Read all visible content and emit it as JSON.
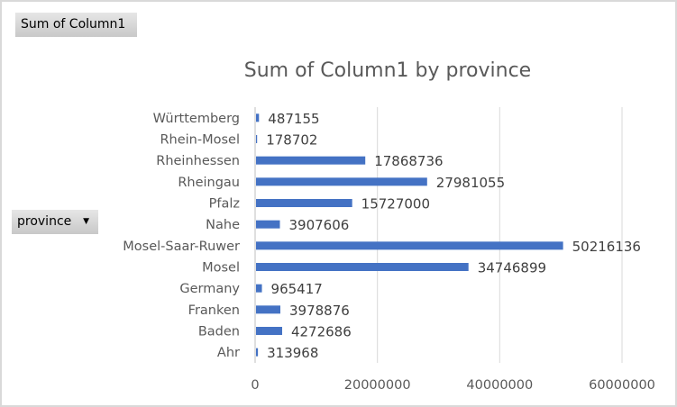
{
  "value_field_button": {
    "label": "Sum of Column1"
  },
  "axis_field_button": {
    "label": "province",
    "icon": "dropdown-arrow-icon"
  },
  "chart_data": {
    "type": "bar",
    "orientation": "horizontal",
    "title": "Sum of Column1 by province",
    "categories": [
      "Ahr",
      "Baden",
      "Franken",
      "Germany",
      "Mosel",
      "Mosel-Saar-Ruwer",
      "Nahe",
      "Pfalz",
      "Rheingau",
      "Rheinhessen",
      "Rhein-Mosel",
      "Württemberg"
    ],
    "values": [
      313968,
      4272686,
      3978876,
      965417,
      34746899,
      50216136,
      3907606,
      15727000,
      27981055,
      17868736,
      178702,
      487155
    ],
    "data_labels": true,
    "xlim": [
      0,
      60000000
    ],
    "xticks": [
      0,
      20000000,
      40000000,
      60000000
    ],
    "xtick_labels": [
      "0",
      "20000000",
      "40000000",
      "60000000"
    ],
    "grid": "vertical",
    "legend": "none",
    "bar_color": "#4472c4",
    "grid_color": "#d9d9d9"
  }
}
